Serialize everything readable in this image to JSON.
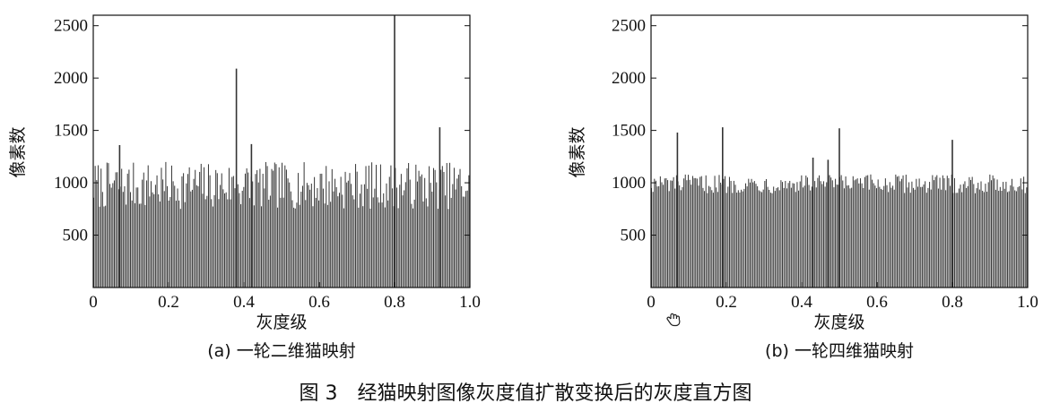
{
  "figure_caption": "图 3　经猫映射图像灰度值扩散变换后的灰度直方图",
  "chart_data": [
    {
      "type": "bar",
      "caption": "(a) 一轮二维猫映射",
      "xlabel": "灰度级",
      "ylabel": "像素数",
      "xlim": [
        0,
        1.0
      ],
      "ylim": [
        0,
        2600
      ],
      "xticks": [
        "0",
        "0.2",
        "0.4",
        "0.6",
        "0.8",
        "1.0"
      ],
      "xtick_values": [
        0,
        0.2,
        0.4,
        0.6,
        0.8,
        1.0
      ],
      "yticks": [
        "500",
        "1000",
        "1500",
        "2000",
        "2500"
      ],
      "ytick_values": [
        500,
        1000,
        1500,
        2000,
        2500
      ],
      "bins": 256,
      "typical_count_range": [
        750,
        1200
      ],
      "peaks": [
        {
          "x": 0.07,
          "y": 1360
        },
        {
          "x": 0.38,
          "y": 2090
        },
        {
          "x": 0.42,
          "y": 1370
        },
        {
          "x": 0.8,
          "y": 2600
        },
        {
          "x": 0.92,
          "y": 1530
        }
      ],
      "color": "#3a3a3a",
      "grid": false
    },
    {
      "type": "bar",
      "caption": "(b) 一轮四维猫映射",
      "xlabel": "灰度级",
      "ylabel": "像素数",
      "xlim": [
        0,
        1.0
      ],
      "ylim": [
        0,
        2600
      ],
      "xticks": [
        "0",
        "0.2",
        "0.4",
        "0.6",
        "0.8",
        "1.0"
      ],
      "xtick_values": [
        0,
        0.2,
        0.4,
        0.6,
        0.8,
        1.0
      ],
      "yticks": [
        "500",
        "1000",
        "1500",
        "2000",
        "2500"
      ],
      "ytick_values": [
        500,
        1000,
        1500,
        2000,
        2500
      ],
      "bins": 256,
      "typical_count_range": [
        900,
        1080
      ],
      "peaks": [
        {
          "x": 0.07,
          "y": 1480
        },
        {
          "x": 0.19,
          "y": 1530
        },
        {
          "x": 0.43,
          "y": 1240
        },
        {
          "x": 0.47,
          "y": 1220
        },
        {
          "x": 0.5,
          "y": 1520
        },
        {
          "x": 0.8,
          "y": 1410
        }
      ],
      "color": "#3a3a3a",
      "grid": false
    }
  ]
}
